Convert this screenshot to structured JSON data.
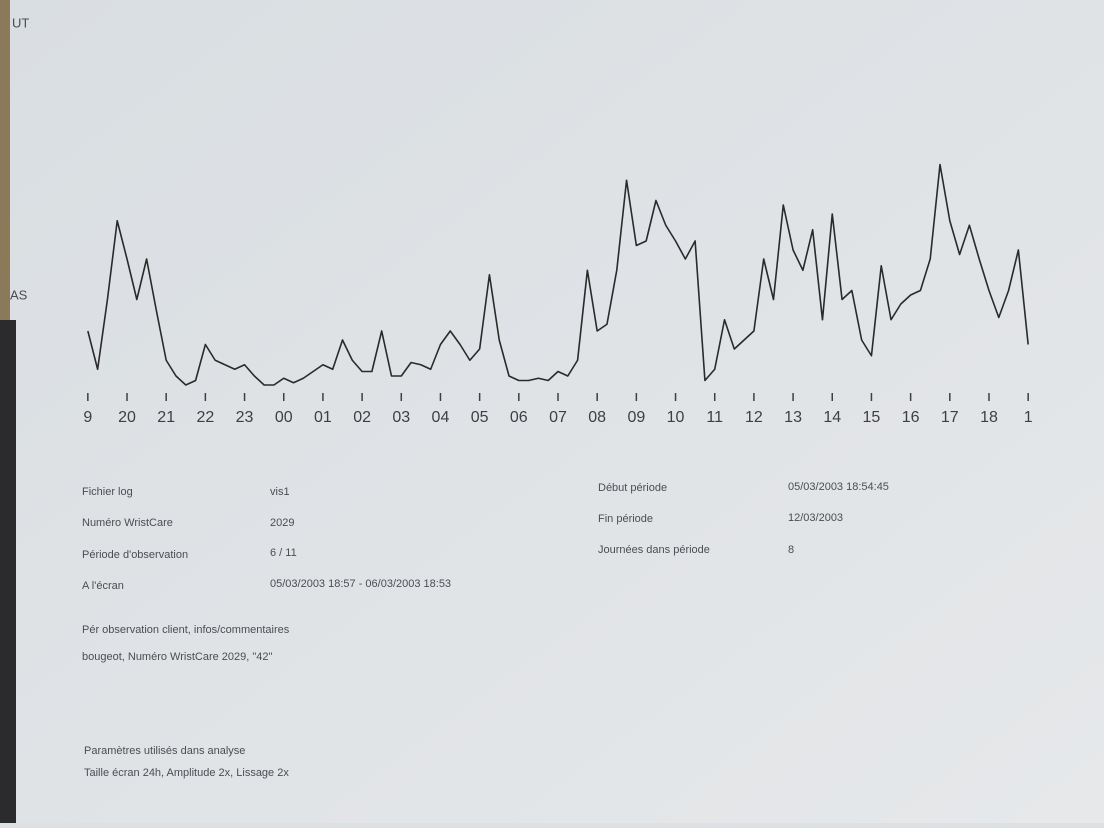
{
  "chart_data": {
    "type": "line",
    "scale_top_label": "UT",
    "scale_bottom_label": "AS",
    "x": [
      0,
      0.25,
      0.5,
      0.75,
      1,
      1.25,
      1.5,
      1.75,
      2,
      2.25,
      2.5,
      2.75,
      3,
      3.25,
      3.5,
      3.75,
      4,
      4.25,
      4.5,
      4.75,
      5,
      5.25,
      5.5,
      5.75,
      6,
      6.25,
      6.5,
      6.75,
      7,
      7.25,
      7.5,
      7.75,
      8,
      8.25,
      8.5,
      8.75,
      9,
      9.25,
      9.5,
      9.75,
      10,
      10.25,
      10.5,
      10.75,
      11,
      11.25,
      11.5,
      11.75,
      12,
      12.25,
      12.5,
      12.75,
      13,
      13.25,
      13.5,
      13.75,
      14,
      14.25,
      14.5,
      14.75,
      15,
      15.25,
      15.5,
      15.75,
      16,
      16.25,
      16.5,
      16.75,
      17,
      17.25,
      17.5,
      17.75,
      18,
      18.25,
      18.5,
      18.75,
      19,
      19.25,
      19.5,
      19.75,
      20,
      20.25,
      20.5,
      20.75,
      21,
      21.25,
      21.5,
      21.75,
      22,
      22.25,
      22.5,
      22.75,
      23,
      23.25,
      23.5,
      23.75,
      24
    ],
    "values": [
      24,
      7,
      38,
      73,
      56,
      38,
      56,
      33,
      11,
      4,
      0,
      2,
      18,
      11,
      9,
      7,
      9,
      4,
      0,
      0,
      3,
      1,
      3,
      6,
      9,
      7,
      20,
      11,
      6,
      6,
      24,
      4,
      4,
      10,
      9,
      7,
      18,
      24,
      18,
      11,
      16,
      49,
      20,
      4,
      2,
      2,
      3,
      2,
      6,
      4,
      11,
      51,
      24,
      27,
      51,
      91,
      62,
      64,
      82,
      71,
      64,
      56,
      64,
      2,
      7,
      29,
      16,
      20,
      24,
      56,
      38,
      80,
      60,
      51,
      69,
      29,
      76,
      38,
      42,
      20,
      13,
      53,
      29,
      36,
      40,
      42,
      56,
      98,
      73,
      58,
      71,
      56,
      42,
      30,
      42,
      60,
      18
    ],
    "color": "#2a2a2a",
    "xlim": [
      -0.2,
      24.2
    ],
    "ylim": [
      0,
      100
    ],
    "xticks": [
      {
        "value": 0,
        "label": "9"
      },
      {
        "value": 1,
        "label": "20"
      },
      {
        "value": 2,
        "label": "21"
      },
      {
        "value": 3,
        "label": "22"
      },
      {
        "value": 4,
        "label": "23"
      },
      {
        "value": 5,
        "label": "00"
      },
      {
        "value": 6,
        "label": "01"
      },
      {
        "value": 7,
        "label": "02"
      },
      {
        "value": 8,
        "label": "03"
      },
      {
        "value": 9,
        "label": "04"
      },
      {
        "value": 10,
        "label": "05"
      },
      {
        "value": 11,
        "label": "06"
      },
      {
        "value": 12,
        "label": "07"
      },
      {
        "value": 13,
        "label": "08"
      },
      {
        "value": 14,
        "label": "09"
      },
      {
        "value": 15,
        "label": "10"
      },
      {
        "value": 16,
        "label": "11"
      },
      {
        "value": 17,
        "label": "12"
      },
      {
        "value": 18,
        "label": "13"
      },
      {
        "value": 19,
        "label": "14"
      },
      {
        "value": 20,
        "label": "15"
      },
      {
        "value": 21,
        "label": "16"
      },
      {
        "value": 22,
        "label": "17"
      },
      {
        "value": 23,
        "label": "18"
      },
      {
        "value": 24,
        "label": "1"
      }
    ]
  },
  "info_left": [
    [
      "Fichier log",
      "vis1"
    ],
    [
      "Numéro WristCare",
      "2029"
    ],
    [
      "Période d'observation",
      "6 / 11"
    ],
    [
      "A l'écran",
      "05/03/2003 18:57  -  06/03/2003 18:53"
    ]
  ],
  "info_right": [
    [
      "Début période",
      "05/03/2003 18:54:45"
    ],
    [
      "Fin période",
      "12/03/2003"
    ],
    [
      "Journées dans période",
      "8"
    ]
  ],
  "comments": [
    "Pér observation client, infos/commentaires",
    "bougeot, Numéro WristCare 2029, \"42\""
  ],
  "parameters": [
    "Paramètres utilisés dans analyse",
    "Taille écran 24h, Amplitude 2x, Lissage 2x"
  ]
}
